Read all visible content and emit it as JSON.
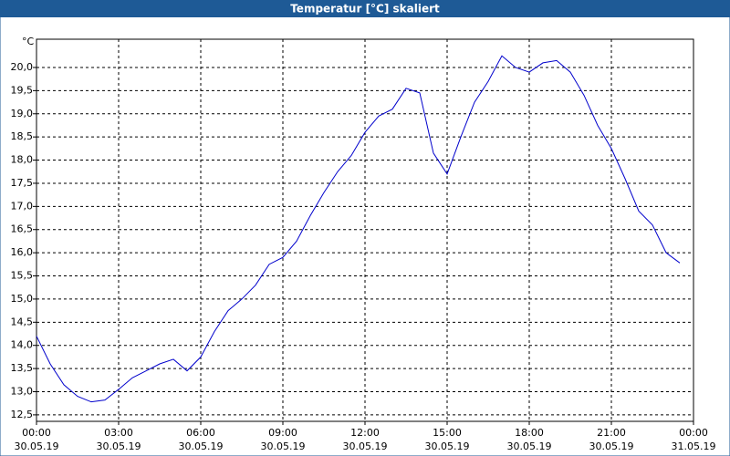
{
  "chart_data": {
    "type": "line",
    "title": "Temperatur [°C] skaliert",
    "y_label": "°C",
    "x": [
      0,
      0.5,
      1,
      1.5,
      2,
      2.5,
      3,
      3.5,
      4,
      4.5,
      5,
      5.5,
      6,
      6.5,
      7,
      7.5,
      8,
      8.5,
      9,
      9.5,
      10,
      10.5,
      11,
      11.5,
      12,
      12.5,
      13,
      13.5,
      14,
      14.5,
      15,
      15.5,
      16,
      16.5,
      17,
      17.5,
      18,
      18.5,
      19,
      19.5,
      20,
      20.5,
      21,
      21.5,
      22,
      22.5,
      23,
      23.5
    ],
    "series": [
      {
        "name": "Temperatur",
        "color": "#0000cc",
        "values": [
          14.2,
          13.6,
          13.15,
          12.9,
          12.78,
          12.82,
          13.05,
          13.3,
          13.45,
          13.6,
          13.7,
          13.45,
          13.75,
          14.3,
          14.75,
          15.0,
          15.3,
          15.75,
          15.9,
          16.25,
          16.8,
          17.3,
          17.75,
          18.1,
          18.6,
          18.95,
          19.1,
          19.55,
          19.45,
          18.15,
          17.7,
          18.5,
          19.25,
          19.7,
          20.25,
          20.0,
          19.9,
          20.1,
          20.15,
          19.9,
          19.4,
          18.75,
          18.25,
          17.6,
          16.9,
          16.6,
          16.0,
          15.78
        ]
      }
    ],
    "xlim": [
      0,
      24
    ],
    "xticks": [
      {
        "value": 0,
        "label": "00:00",
        "date": "30.05.19"
      },
      {
        "value": 3,
        "label": "03:00",
        "date": "30.05.19"
      },
      {
        "value": 6,
        "label": "06:00",
        "date": "30.05.19"
      },
      {
        "value": 9,
        "label": "09:00",
        "date": "30.05.19"
      },
      {
        "value": 12,
        "label": "12:00",
        "date": "30.05.19"
      },
      {
        "value": 15,
        "label": "15:00",
        "date": "30.05.19"
      },
      {
        "value": 18,
        "label": "18:00",
        "date": "30.05.19"
      },
      {
        "value": 21,
        "label": "21:00",
        "date": "30.05.19"
      },
      {
        "value": 24,
        "label": "00:00",
        "date": "31.05.19"
      }
    ],
    "ylim": [
      12.36,
      20.61
    ],
    "yticks": [
      {
        "value": 12.5,
        "label": "12,5"
      },
      {
        "value": 13,
        "label": "13,0"
      },
      {
        "value": 13.5,
        "label": "13,5"
      },
      {
        "value": 14,
        "label": "14,0"
      },
      {
        "value": 14.5,
        "label": "14,5"
      },
      {
        "value": 15,
        "label": "15,0"
      },
      {
        "value": 15.5,
        "label": "15,5"
      },
      {
        "value": 16,
        "label": "16,0"
      },
      {
        "value": 16.5,
        "label": "16,5"
      },
      {
        "value": 17,
        "label": "17,0"
      },
      {
        "value": 17.5,
        "label": "17,5"
      },
      {
        "value": 18,
        "label": "18,0"
      },
      {
        "value": 18.5,
        "label": "18,5"
      },
      {
        "value": 19,
        "label": "19,0"
      },
      {
        "value": 19.5,
        "label": "19,5"
      },
      {
        "value": 20,
        "label": "20,0"
      }
    ],
    "grid": true
  }
}
